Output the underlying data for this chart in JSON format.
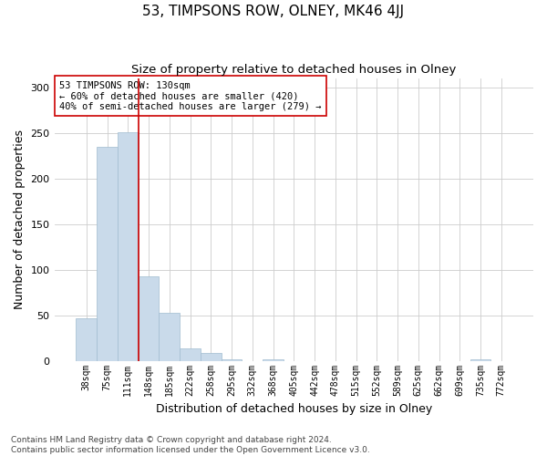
{
  "title": "53, TIMPSONS ROW, OLNEY, MK46 4JJ",
  "subtitle": "Size of property relative to detached houses in Olney",
  "xlabel": "Distribution of detached houses by size in Olney",
  "ylabel": "Number of detached properties",
  "bar_labels": [
    "38sqm",
    "75sqm",
    "111sqm",
    "148sqm",
    "185sqm",
    "222sqm",
    "258sqm",
    "295sqm",
    "332sqm",
    "368sqm",
    "405sqm",
    "442sqm",
    "478sqm",
    "515sqm",
    "552sqm",
    "589sqm",
    "625sqm",
    "662sqm",
    "699sqm",
    "735sqm",
    "772sqm"
  ],
  "bar_values": [
    47,
    235,
    251,
    93,
    53,
    14,
    9,
    2,
    0,
    2,
    0,
    0,
    0,
    0,
    0,
    0,
    0,
    0,
    0,
    2,
    0
  ],
  "bar_color": "#c9daea",
  "bar_edge_color": "#a0bcd0",
  "vline_x_index": 2.5,
  "vline_color": "#cc0000",
  "annotation_title": "53 TIMPSONS ROW: 130sqm",
  "annotation_line2": "← 60% of detached houses are smaller (420)",
  "annotation_line3": "40% of semi-detached houses are larger (279) →",
  "annotation_box_color": "#ffffff",
  "annotation_box_edge": "#cc0000",
  "ylim": [
    0,
    310
  ],
  "yticks": [
    0,
    50,
    100,
    150,
    200,
    250,
    300
  ],
  "footnote1": "Contains HM Land Registry data © Crown copyright and database right 2024.",
  "footnote2": "Contains public sector information licensed under the Open Government Licence v3.0.",
  "background_color": "#ffffff",
  "grid_color": "#cccccc",
  "title_fontsize": 11,
  "subtitle_fontsize": 9.5,
  "label_fontsize": 9,
  "tick_fontsize": 7,
  "annotation_fontsize": 7.5,
  "footnote_fontsize": 6.5
}
